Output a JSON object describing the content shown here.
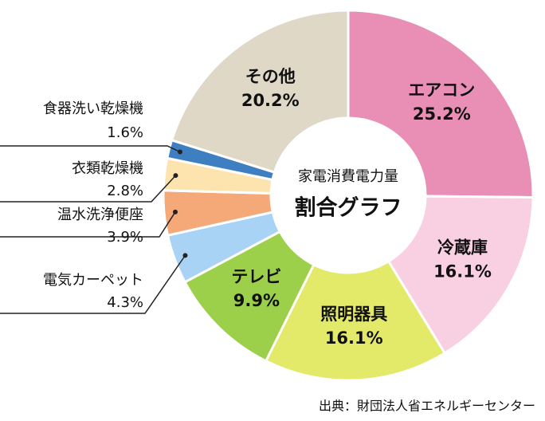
{
  "chart_data": {
    "type": "donut",
    "title": "家電消費電力量",
    "subtitle": "割合グラフ",
    "source": "出典：財団法人省エネルギーセンター",
    "categories": [
      "エアコン",
      "冷蔵庫",
      "照明器具",
      "テレビ",
      "電気カーペット",
      "温水洗浄便座",
      "衣類乾燥機",
      "食器洗い乾燥機",
      "その他"
    ],
    "values": [
      25.2,
      16.1,
      16.1,
      9.9,
      4.3,
      3.9,
      2.8,
      1.6,
      20.2
    ],
    "value_labels": [
      "25.2%",
      "16.1%",
      "16.1%",
      "9.9%",
      "4.3%",
      "3.9%",
      "2.8%",
      "1.6%",
      "20.2%"
    ],
    "colors": [
      "#e98fb5",
      "#f9d0e1",
      "#e3ea6a",
      "#9ccf4a",
      "#a9d3f5",
      "#f5a878",
      "#fde3ae",
      "#3d7fc1",
      "#dfd8c7"
    ]
  }
}
